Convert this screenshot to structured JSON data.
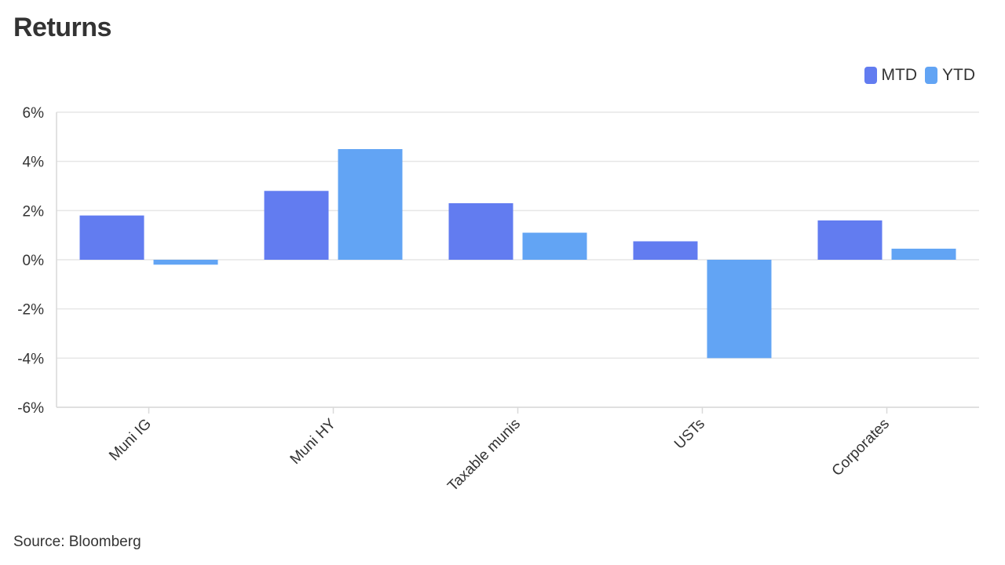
{
  "chart_data": {
    "type": "bar",
    "title": "Returns",
    "categories": [
      "Muni IG",
      "Muni HY",
      "Taxable munis",
      "USTs",
      "Corporates"
    ],
    "series": [
      {
        "name": "MTD",
        "color": "#627CF0",
        "values": [
          1.8,
          2.8,
          2.3,
          0.75,
          1.6
        ]
      },
      {
        "name": "YTD",
        "color": "#62A4F4",
        "values": [
          -0.2,
          4.5,
          1.1,
          -4.0,
          0.45
        ]
      }
    ],
    "ylim": [
      -6,
      6
    ],
    "yticks": [
      6,
      4,
      2,
      0,
      -2,
      -4,
      -6
    ],
    "ytick_labels": [
      "6%",
      "4%",
      "2%",
      "0%",
      "-2%",
      "-4%",
      "-6%"
    ],
    "legend_position": "top-right",
    "grid": true,
    "source": "Source: Bloomberg"
  }
}
